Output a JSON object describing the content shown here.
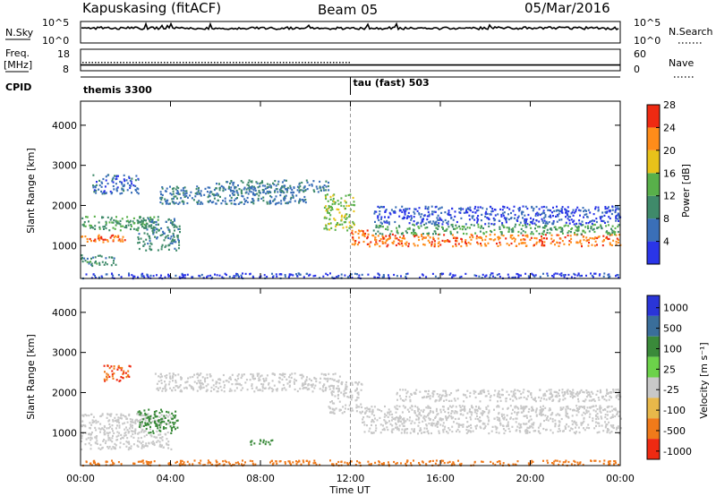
{
  "header": {
    "station": "Kapuskasing (fitACF)",
    "beam": "Beam 05",
    "date": "05/Mar/2016"
  },
  "strips": {
    "nsky": {
      "label": "N.Sky",
      "left_ticks": [
        "10^5",
        "10^0"
      ],
      "right_ticks": [
        "10^5",
        "10^0"
      ],
      "right_label": "N.Search"
    },
    "freq": {
      "label_top": "Freq.",
      "label_bottom": "[MHz]",
      "left_ticks": [
        "18",
        "8"
      ],
      "right_ticks": [
        "60",
        "0"
      ],
      "right_label": "Nave",
      "freq_level": 11.5,
      "nave_level": 23
    },
    "cpid": {
      "label": "CPID",
      "modes": [
        {
          "name": "themis 3300",
          "start_hour": 0
        },
        {
          "name": "tau (fast) 503",
          "start_hour": 12
        }
      ]
    }
  },
  "axis": {
    "xlabel": "Time UT",
    "xticks": [
      "00:00",
      "04:00",
      "08:00",
      "12:00",
      "16:00",
      "20:00",
      "00:00"
    ],
    "ylabel": "Slant Range [km]",
    "yticks": [
      "1000",
      "2000",
      "3000",
      "4000"
    ]
  },
  "colorbars": {
    "power": {
      "label": "Power [dB]",
      "ticks": [
        "4",
        "8",
        "12",
        "16",
        "20",
        "24",
        "28"
      ],
      "colors": [
        "#2a35e8",
        "#3a6fb8",
        "#3f8a6a",
        "#58b04a",
        "#e8c21a",
        "#ff8c1a",
        "#ef2a12"
      ]
    },
    "velocity": {
      "label": "Velocity [m s⁻¹]",
      "ticks": [
        "1000",
        "500",
        "100",
        "25",
        "-25",
        "-100",
        "-500",
        "-1000"
      ],
      "colors": [
        "#2a35d8",
        "#3a6e9a",
        "#3a8a3a",
        "#6cd24a",
        "#c8c8c8",
        "#e8b84a",
        "#f07a1a",
        "#ef2a12"
      ]
    }
  },
  "chart_data": [
    {
      "type": "heatmap",
      "title": "Power",
      "xlabel": "Time UT",
      "ylabel": "Slant Range [km]",
      "xlim": [
        0,
        24
      ],
      "ylim": [
        180,
        4600
      ],
      "zlabel": "Power [dB]",
      "zrange": [
        3,
        30
      ],
      "echo_bands": [
        {
          "t0": 0.0,
          "t1": 2.0,
          "r0": 1100,
          "r1": 1300,
          "value": 27
        },
        {
          "t0": 0.0,
          "t1": 3.5,
          "r0": 1400,
          "r1": 1750,
          "value": 14
        },
        {
          "t0": 0.0,
          "t1": 1.6,
          "r0": 500,
          "r1": 780,
          "value": 13
        },
        {
          "t0": 0.5,
          "t1": 2.6,
          "r0": 2300,
          "r1": 2800,
          "value": 9
        },
        {
          "t0": 2.5,
          "t1": 4.4,
          "r0": 900,
          "r1": 1700,
          "value": 12
        },
        {
          "t0": 3.5,
          "t1": 10.0,
          "r0": 2050,
          "r1": 2500,
          "value": 10
        },
        {
          "t0": 6.0,
          "t1": 11.0,
          "r0": 2350,
          "r1": 2650,
          "value": 11
        },
        {
          "t0": 10.8,
          "t1": 12.2,
          "r0": 1400,
          "r1": 2300,
          "value": 18
        },
        {
          "t0": 12.0,
          "t1": 13.0,
          "r0": 1000,
          "r1": 1400,
          "value": 26
        },
        {
          "t0": 13.0,
          "t1": 24.0,
          "r0": 1000,
          "r1": 1300,
          "value": 26
        },
        {
          "t0": 13.0,
          "t1": 24.0,
          "r0": 1300,
          "r1": 1550,
          "value": 15
        },
        {
          "t0": 13.0,
          "t1": 24.0,
          "r0": 1550,
          "r1": 2000,
          "value": 7
        },
        {
          "t0": 0.0,
          "t1": 24.0,
          "r0": 200,
          "r1": 330,
          "value": 6
        }
      ]
    },
    {
      "type": "heatmap",
      "title": "Velocity",
      "xlabel": "Time UT",
      "ylabel": "Slant Range [km]",
      "xlim": [
        0,
        24
      ],
      "ylim": [
        180,
        4600
      ],
      "zlabel": "Velocity [m s⁻¹]",
      "zrange": [
        -1000,
        1000
      ],
      "echo_bands": [
        {
          "t0": 0.0,
          "t1": 4.0,
          "r0": 600,
          "r1": 1500,
          "value": 0
        },
        {
          "t0": 1.0,
          "t1": 2.2,
          "r0": 2300,
          "r1": 2700,
          "value": -300
        },
        {
          "t0": 2.5,
          "t1": 4.3,
          "r0": 1000,
          "r1": 1600,
          "value": 120
        },
        {
          "t0": 3.3,
          "t1": 11.5,
          "r0": 2050,
          "r1": 2500,
          "value": 0
        },
        {
          "t0": 7.5,
          "t1": 8.5,
          "r0": 700,
          "r1": 850,
          "value": 150
        },
        {
          "t0": 11.0,
          "t1": 12.5,
          "r0": 1500,
          "r1": 2300,
          "value": 0
        },
        {
          "t0": 12.5,
          "t1": 24.0,
          "r0": 1000,
          "r1": 1700,
          "value": 0
        },
        {
          "t0": 14.0,
          "t1": 24.0,
          "r0": 1800,
          "r1": 2100,
          "value": 0
        },
        {
          "t0": 0.0,
          "t1": 24.0,
          "r0": 200,
          "r1": 330,
          "value": -200
        }
      ]
    }
  ]
}
